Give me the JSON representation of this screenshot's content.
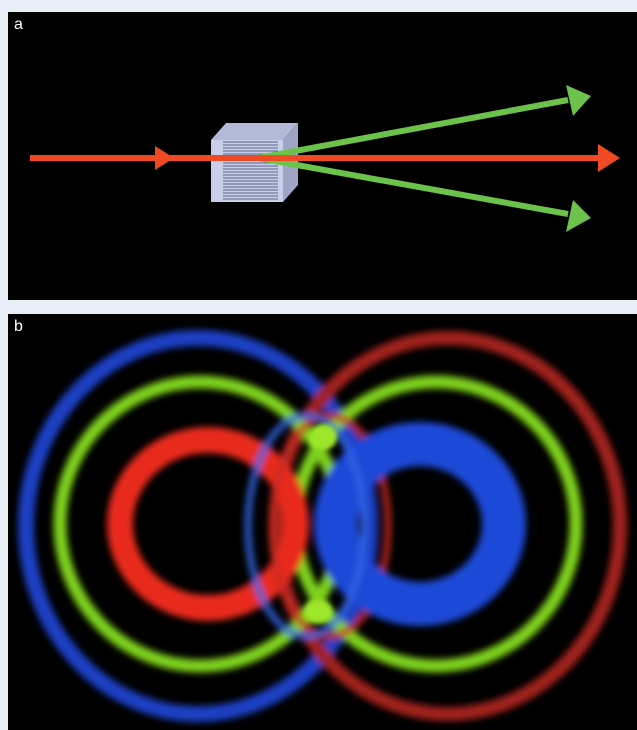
{
  "figure": {
    "panels": [
      {
        "id": "a",
        "label": "a"
      },
      {
        "id": "b",
        "label": "b"
      }
    ]
  },
  "colors": {
    "background": "#000000",
    "page_border": "#e8eef5",
    "pump_beam": "#f04a24",
    "down_converted_beam": "#6cc24a",
    "crystal_face": "#c9cfe8",
    "crystal_top": "#b3b9d6",
    "crystal_side": "#9ea5c6",
    "ring_blue": "#1b3fc4",
    "ring_red": "#e82a1e",
    "ring_green": "#7fd21a",
    "ring_dark_red": "#a0221c"
  },
  "panel_a": {
    "icons": [
      "nonlinear-crystal-icon",
      "pump-beam-arrow-icon",
      "signal-beam-arrow-icon",
      "idler-beam-arrow-icon"
    ]
  },
  "panel_b": {
    "icons": [
      "down-conversion-rings-photo"
    ]
  }
}
